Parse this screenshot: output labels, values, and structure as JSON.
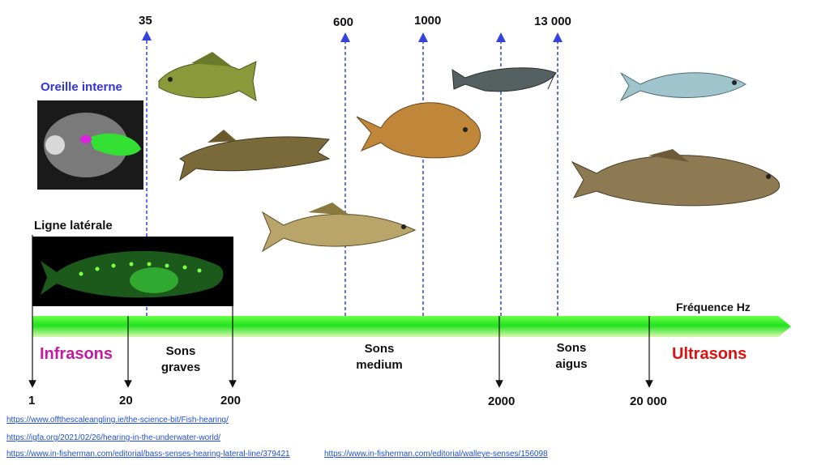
{
  "top_freqs": [
    "35",
    "600",
    "1000",
    "13 000"
  ],
  "bottom_freqs": [
    "1",
    "20",
    "200",
    "2000",
    "20 000"
  ],
  "axis_label": "Fréquence Hz",
  "zones": {
    "infrasons": "Infrasons",
    "sons_graves_1": "Sons",
    "sons_graves_2": "graves",
    "sons_medium_1": "Sons",
    "sons_medium_2": "medium",
    "sons_aigus_1": "Sons",
    "sons_aigus_2": "aigus",
    "ultrasons": "Ultrasons"
  },
  "inner_ear_label": "Oreille interne",
  "lateral_line_label": "Ligne latérale",
  "links": [
    "https://www.offthescaleangling.ie/the-science-bit/Fish-hearing/",
    "https://igfa.org/2021/02/26/hearing-in-the-underwater-world/",
    "https://www.in-fisherman.com/editorial/bass-senses-hearing-lateral-line/379421",
    "https://www.in-fisherman.com/editorial/walleye-senses/156098"
  ],
  "colors": {
    "infrasons": "#c41aa0",
    "ultrasons": "#e01010",
    "inner_ear_label": "#3333dd",
    "arrow_dashed": "#3344dd",
    "bar_green": "#22ee22"
  }
}
